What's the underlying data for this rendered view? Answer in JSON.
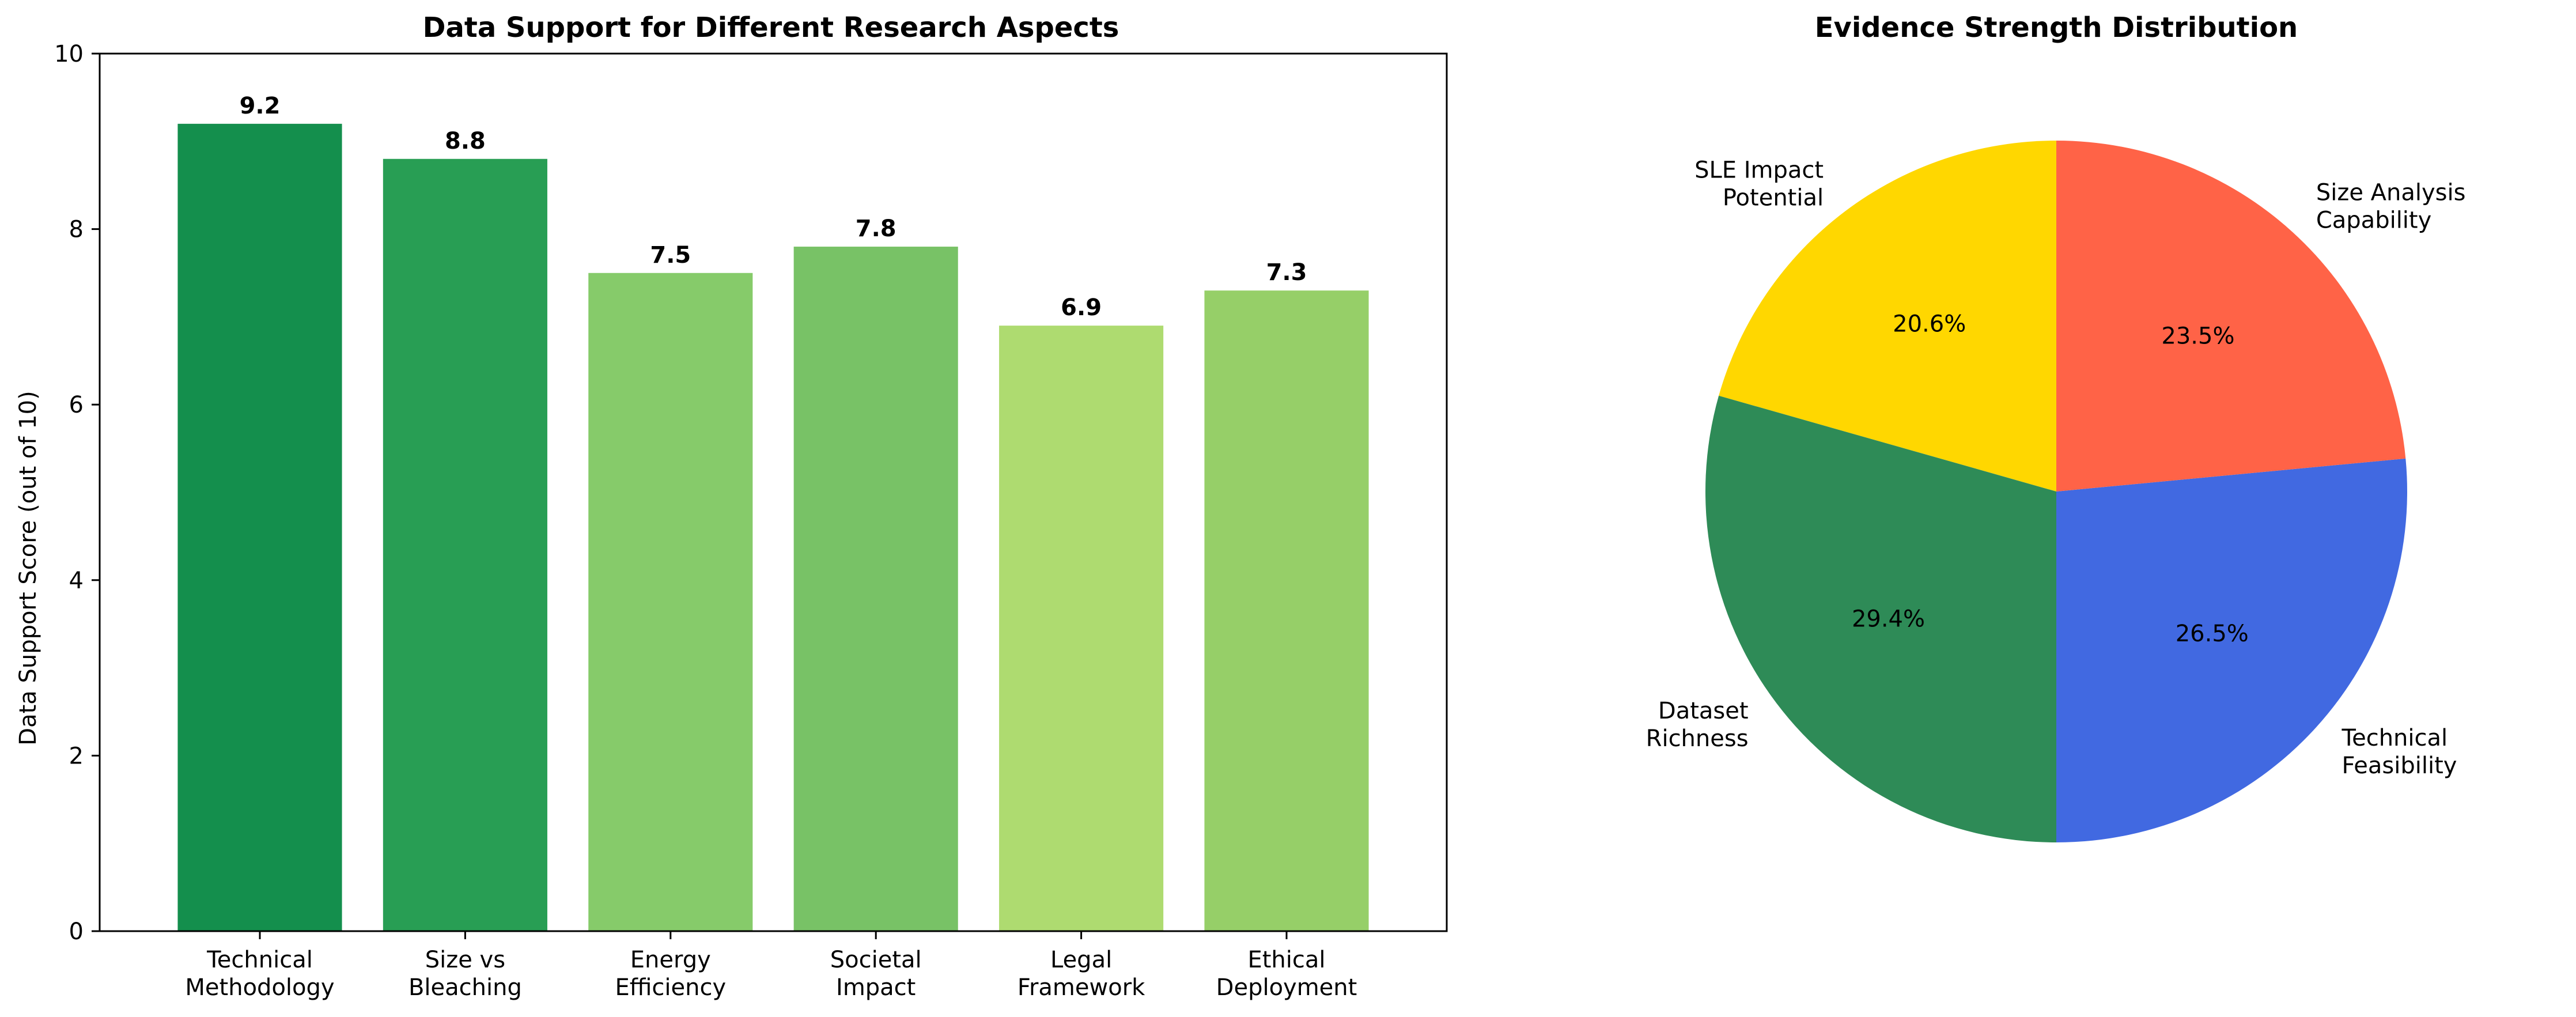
{
  "chart_data": [
    {
      "type": "bar",
      "title": "Data Support for Different Research Aspects",
      "xlabel": "",
      "ylabel": "Data Support Score (out of 10)",
      "ylim": [
        0,
        10
      ],
      "yticks": [
        0,
        2,
        4,
        6,
        8,
        10
      ],
      "categories": [
        [
          "Technical",
          "Methodology"
        ],
        [
          "Size vs",
          "Bleaching"
        ],
        [
          "Energy",
          "Efficiency"
        ],
        [
          "Societal",
          "Impact"
        ],
        [
          "Legal",
          "Framework"
        ],
        [
          "Ethical",
          "Deployment"
        ]
      ],
      "values": [
        9.2,
        8.8,
        7.5,
        7.8,
        6.9,
        7.3
      ],
      "value_labels": [
        "9.2",
        "8.8",
        "7.5",
        "7.8",
        "6.9",
        "7.3"
      ],
      "colors": [
        "#148F4D",
        "#289E54",
        "#86CB6A",
        "#78C266",
        "#AEDB70",
        "#96CF68"
      ],
      "grid": false
    },
    {
      "type": "pie",
      "title": "Evidence Strength Distribution",
      "start_angle_deg": 90,
      "direction": "counterclockwise",
      "slices": [
        {
          "label": [
            "SLE Impact",
            "Potential"
          ],
          "value": 20.6,
          "pct": "20.6%",
          "color": "#FFD700"
        },
        {
          "label": [
            "Dataset",
            "Richness"
          ],
          "value": 29.4,
          "pct": "29.4%",
          "color": "#2E8B57"
        },
        {
          "label": [
            "Technical",
            "Feasibility"
          ],
          "value": 26.5,
          "pct": "26.5%",
          "color": "#4169E1"
        },
        {
          "label": [
            "Size Analysis",
            "Capability"
          ],
          "value": 23.5,
          "pct": "23.5%",
          "color": "#FF6347"
        }
      ]
    }
  ]
}
